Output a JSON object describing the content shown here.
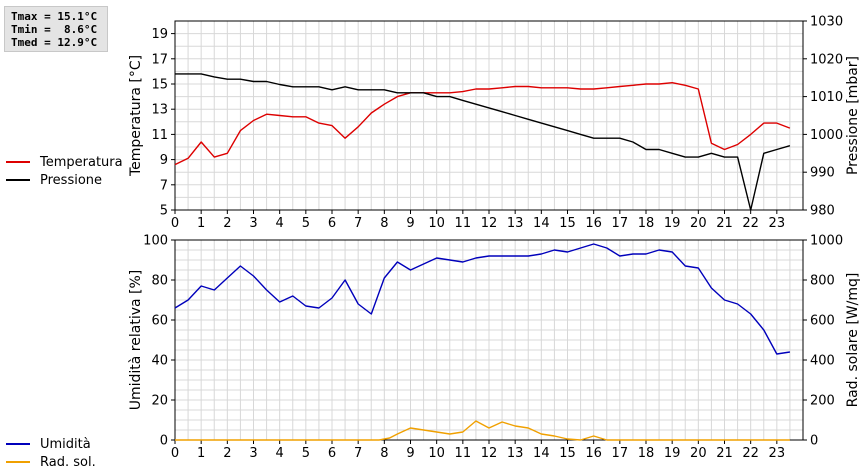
{
  "stats": [
    "Tmax = 15.1°C",
    "Tmin =  8.6°C",
    "Tmed = 12.9°C"
  ],
  "colors": {
    "temperatura": "#dd0000",
    "pressione": "#000000",
    "umidita": "#0000bb",
    "radiazione": "#f0a000",
    "grid": "#d8d8d8"
  },
  "chart_data": [
    {
      "type": "line",
      "ylabel": "Temperatura [°C]",
      "y2label": "Pressione [mbar]",
      "xlim": [
        0,
        24
      ],
      "ylim": [
        5,
        20
      ],
      "y2lim": [
        980,
        1030
      ],
      "xticks": [
        "0",
        "1",
        "2",
        "3",
        "4",
        "5",
        "6",
        "7",
        "8",
        "9",
        "10",
        "11",
        "12",
        "13",
        "14",
        "15",
        "16",
        "17",
        "18",
        "19",
        "20",
        "21",
        "22",
        "23"
      ],
      "yticks": [
        "5",
        "7",
        "9",
        "11",
        "13",
        "15",
        "17",
        "19"
      ],
      "y2ticks": [
        "980",
        "990",
        "1000",
        "1010",
        "1020",
        "1030"
      ],
      "grid": true,
      "series": [
        {
          "name": "Temperatura",
          "axis": "left",
          "x": [
            0,
            0.5,
            1,
            1.5,
            2,
            2.5,
            3,
            3.5,
            4,
            4.5,
            5,
            5.5,
            6,
            6.5,
            7,
            7.5,
            8,
            8.5,
            9,
            9.5,
            10,
            10.5,
            11,
            11.5,
            12,
            12.5,
            13,
            13.5,
            14,
            14.5,
            15,
            15.5,
            16,
            16.5,
            17,
            17.5,
            18,
            18.5,
            19,
            19.5,
            20,
            20.5,
            21,
            21.5,
            22,
            22.5,
            23,
            23.5
          ],
          "values": [
            8.6,
            9.1,
            10.4,
            9.2,
            9.5,
            11.3,
            12.1,
            12.6,
            12.5,
            12.4,
            12.4,
            11.9,
            11.7,
            10.7,
            11.6,
            12.7,
            13.4,
            14.0,
            14.3,
            14.3,
            14.3,
            14.3,
            14.4,
            14.6,
            14.6,
            14.7,
            14.8,
            14.8,
            14.7,
            14.7,
            14.7,
            14.6,
            14.6,
            14.7,
            14.8,
            14.9,
            15.0,
            15.0,
            15.1,
            14.9,
            14.6,
            10.3,
            9.8,
            10.2,
            11.0,
            11.9,
            11.9,
            11.5
          ]
        },
        {
          "name": "Pressione",
          "axis": "right",
          "x": [
            0,
            0.5,
            1,
            1.5,
            2,
            2.5,
            3,
            3.5,
            4,
            4.5,
            5,
            5.5,
            6,
            6.5,
            7,
            7.5,
            8,
            8.5,
            9,
            9.5,
            10,
            10.5,
            11,
            11.5,
            12,
            12.5,
            13,
            13.5,
            14,
            14.5,
            15,
            15.5,
            16,
            16.5,
            17,
            17.5,
            18,
            18.5,
            19,
            19.5,
            20,
            20.5,
            21,
            21.5,
            22,
            22.5,
            23,
            23.5
          ],
          "values": [
            1016,
            1016,
            1016,
            1015.2,
            1014.6,
            1014.6,
            1014,
            1014,
            1013.2,
            1012.6,
            1012.6,
            1012.6,
            1011.8,
            1012.6,
            1011.8,
            1011.8,
            1011.8,
            1011,
            1011,
            1011,
            1010,
            1010,
            1009,
            1008,
            1007,
            1006,
            1005,
            1004,
            1003,
            1002,
            1001,
            1000,
            999,
            999,
            999,
            998,
            996,
            996,
            995,
            994,
            994,
            995,
            994,
            994,
            980,
            995,
            996,
            997
          ]
        }
      ]
    },
    {
      "type": "line",
      "ylabel": "Umidità relativa [%]",
      "y2label": "Rad. solare [W/mq]",
      "xlim": [
        0,
        24
      ],
      "ylim": [
        0,
        100
      ],
      "y2lim": [
        0,
        1000
      ],
      "xticks": [
        "0",
        "1",
        "2",
        "3",
        "4",
        "5",
        "6",
        "7",
        "8",
        "9",
        "10",
        "11",
        "12",
        "13",
        "14",
        "15",
        "16",
        "17",
        "18",
        "19",
        "20",
        "21",
        "22",
        "23"
      ],
      "yticks": [
        "0",
        "20",
        "40",
        "60",
        "80",
        "100"
      ],
      "y2ticks": [
        "0",
        "200",
        "400",
        "600",
        "800",
        "1000"
      ],
      "grid": true,
      "series": [
        {
          "name": "Umidità",
          "axis": "left",
          "x": [
            0,
            0.5,
            1,
            1.5,
            2,
            2.5,
            3,
            3.5,
            4,
            4.5,
            5,
            5.5,
            6,
            6.5,
            7,
            7.5,
            8,
            8.5,
            9,
            9.5,
            10,
            10.5,
            11,
            11.5,
            12,
            12.5,
            13,
            13.5,
            14,
            14.5,
            15,
            15.5,
            16,
            16.5,
            17,
            17.5,
            18,
            18.5,
            19,
            19.5,
            20,
            20.5,
            21,
            21.5,
            22,
            22.5,
            23,
            23.5
          ],
          "values": [
            66,
            70,
            77,
            75,
            81,
            87,
            82,
            75,
            69,
            72,
            67,
            66,
            71,
            80,
            68,
            63,
            81,
            89,
            85,
            88,
            91,
            90,
            89,
            91,
            92,
            92,
            92,
            92,
            93,
            95,
            94,
            96,
            98,
            96,
            92,
            93,
            93,
            95,
            94,
            87,
            86,
            76,
            70,
            68,
            63,
            55,
            43,
            44
          ]
        },
        {
          "name": "Rad. sol.",
          "axis": "right",
          "x": [
            0,
            1,
            2,
            3,
            4,
            5,
            6,
            7,
            7.8,
            8.2,
            8.5,
            9,
            9.5,
            10,
            10.5,
            11,
            11.5,
            12,
            12.5,
            13,
            13.5,
            14,
            14.5,
            15,
            15.5,
            16,
            16.5,
            17,
            18,
            19,
            20,
            21,
            22,
            23,
            23.5
          ],
          "values": [
            0,
            0,
            0,
            0,
            0,
            0,
            0,
            0,
            0,
            10,
            30,
            60,
            50,
            40,
            30,
            40,
            95,
            60,
            90,
            70,
            60,
            30,
            20,
            5,
            0,
            20,
            0,
            0,
            0,
            0,
            0,
            0,
            0,
            0,
            0
          ]
        }
      ]
    }
  ]
}
